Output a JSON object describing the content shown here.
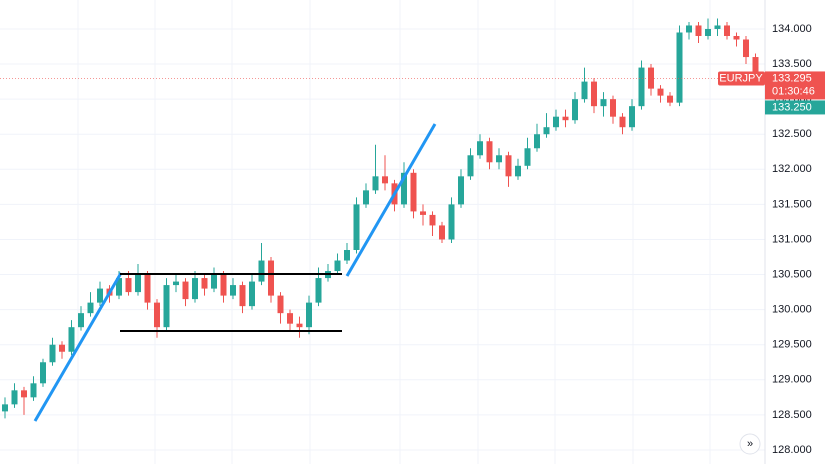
{
  "chart_data": {
    "type": "candlestick",
    "symbol": "EURJPY",
    "open": [
      128.55,
      128.65,
      128.85,
      128.75,
      128.95,
      129.25,
      129.5,
      129.4,
      129.75,
      129.95,
      130.1,
      130.3,
      130.2,
      130.45,
      130.25,
      130.5,
      130.1,
      129.75,
      130.35,
      130.4,
      130.15,
      130.45,
      130.3,
      130.5,
      130.2,
      130.35,
      130.05,
      130.4,
      130.7,
      130.2,
      129.95,
      129.8,
      129.75,
      130.1,
      130.45,
      130.55,
      130.7,
      130.85,
      131.5,
      131.7,
      131.9,
      131.8,
      131.5,
      131.95,
      131.4,
      131.35,
      131.2,
      131.0,
      131.5,
      131.9,
      132.2,
      132.4,
      132.1,
      132.2,
      131.9,
      132.05,
      132.3,
      132.5,
      132.6,
      132.75,
      132.7,
      133.0,
      133.25,
      132.9,
      133.0,
      132.75,
      132.6,
      132.9,
      133.45,
      133.15,
      133.05,
      132.95,
      133.95,
      134.05,
      133.9,
      134.0,
      134.05,
      133.9,
      133.85,
      133.6
    ],
    "high": [
      128.75,
      128.95,
      128.9,
      129.05,
      129.3,
      129.6,
      129.55,
      129.85,
      130.05,
      130.25,
      130.4,
      130.35,
      130.55,
      130.55,
      130.65,
      130.55,
      130.15,
      130.45,
      130.5,
      130.45,
      130.55,
      130.5,
      130.6,
      130.55,
      130.45,
      130.4,
      130.5,
      130.95,
      130.75,
      130.25,
      130.0,
      129.9,
      130.2,
      130.6,
      130.65,
      130.8,
      130.95,
      131.6,
      131.8,
      132.35,
      132.2,
      131.85,
      132.1,
      132.0,
      131.5,
      131.4,
      131.25,
      131.6,
      132.0,
      132.3,
      132.5,
      132.45,
      132.3,
      132.25,
      132.15,
      132.45,
      132.65,
      132.8,
      132.85,
      132.85,
      133.1,
      133.45,
      133.3,
      133.1,
      133.05,
      132.8,
      133.0,
      133.55,
      133.5,
      133.2,
      133.1,
      134.05,
      134.1,
      134.1,
      134.15,
      134.15,
      134.1,
      133.95,
      133.9,
      133.65
    ],
    "low": [
      128.45,
      128.6,
      128.5,
      128.7,
      128.9,
      129.2,
      129.3,
      129.35,
      129.7,
      129.9,
      130.05,
      130.1,
      130.15,
      130.2,
      130.2,
      130.0,
      129.6,
      129.7,
      130.25,
      130.05,
      130.1,
      130.2,
      130.25,
      130.1,
      130.15,
      129.95,
      130.0,
      130.35,
      130.1,
      129.8,
      129.7,
      129.6,
      129.65,
      130.05,
      130.4,
      130.5,
      130.65,
      130.8,
      131.45,
      131.65,
      131.7,
      131.4,
      131.45,
      131.3,
      131.2,
      131.05,
      130.95,
      130.95,
      131.45,
      131.85,
      132.15,
      132.0,
      132.0,
      131.75,
      131.85,
      132.0,
      132.25,
      132.45,
      132.55,
      132.6,
      132.65,
      132.95,
      132.8,
      132.75,
      132.65,
      132.5,
      132.55,
      132.85,
      133.05,
      132.95,
      132.9,
      132.9,
      133.85,
      133.8,
      133.85,
      133.9,
      133.85,
      133.75,
      133.5,
      133.25
    ],
    "close": [
      128.65,
      128.85,
      128.75,
      128.95,
      129.25,
      129.5,
      129.4,
      129.75,
      129.95,
      130.1,
      130.3,
      130.2,
      130.45,
      130.25,
      130.5,
      130.1,
      129.75,
      130.35,
      130.4,
      130.15,
      130.45,
      130.3,
      130.5,
      130.2,
      130.35,
      130.05,
      130.4,
      130.7,
      130.2,
      129.95,
      129.8,
      129.75,
      130.1,
      130.45,
      130.55,
      130.7,
      130.85,
      131.5,
      131.7,
      131.9,
      131.8,
      131.5,
      131.95,
      131.4,
      131.35,
      131.2,
      131.0,
      131.5,
      131.9,
      132.2,
      132.4,
      132.1,
      132.2,
      131.9,
      132.05,
      132.3,
      132.5,
      132.6,
      132.75,
      132.7,
      133.0,
      133.25,
      132.9,
      133.0,
      132.75,
      132.6,
      132.9,
      133.45,
      133.15,
      133.05,
      132.95,
      133.95,
      134.05,
      133.9,
      134.0,
      134.05,
      133.9,
      133.85,
      133.6,
      133.295
    ],
    "up_color": "#26a69a",
    "down_color": "#ef5350",
    "last_price": 133.295,
    "countdown": "01:30:46",
    "second_price": {
      "value": 133.25,
      "label": "133.250"
    },
    "ylim": [
      127.8,
      134.413
    ],
    "yticks": [
      {
        "value": 128,
        "label": "128.000"
      },
      {
        "value": 128.5,
        "label": "128.500"
      },
      {
        "value": 129,
        "label": "129.000"
      },
      {
        "value": 129.5,
        "label": "129.500"
      },
      {
        "value": 130,
        "label": "130.000"
      },
      {
        "value": 130.5,
        "label": "130.500"
      },
      {
        "value": 131,
        "label": "131.000"
      },
      {
        "value": 131.5,
        "label": "131.500"
      },
      {
        "value": 132,
        "label": "132.000"
      },
      {
        "value": 132.5,
        "label": "132.500"
      },
      {
        "value": 133,
        "label": "133.000"
      },
      {
        "value": 133.5,
        "label": "133.500"
      },
      {
        "value": 134,
        "label": "134.000"
      }
    ],
    "grid": true,
    "scroll_button": "»"
  }
}
